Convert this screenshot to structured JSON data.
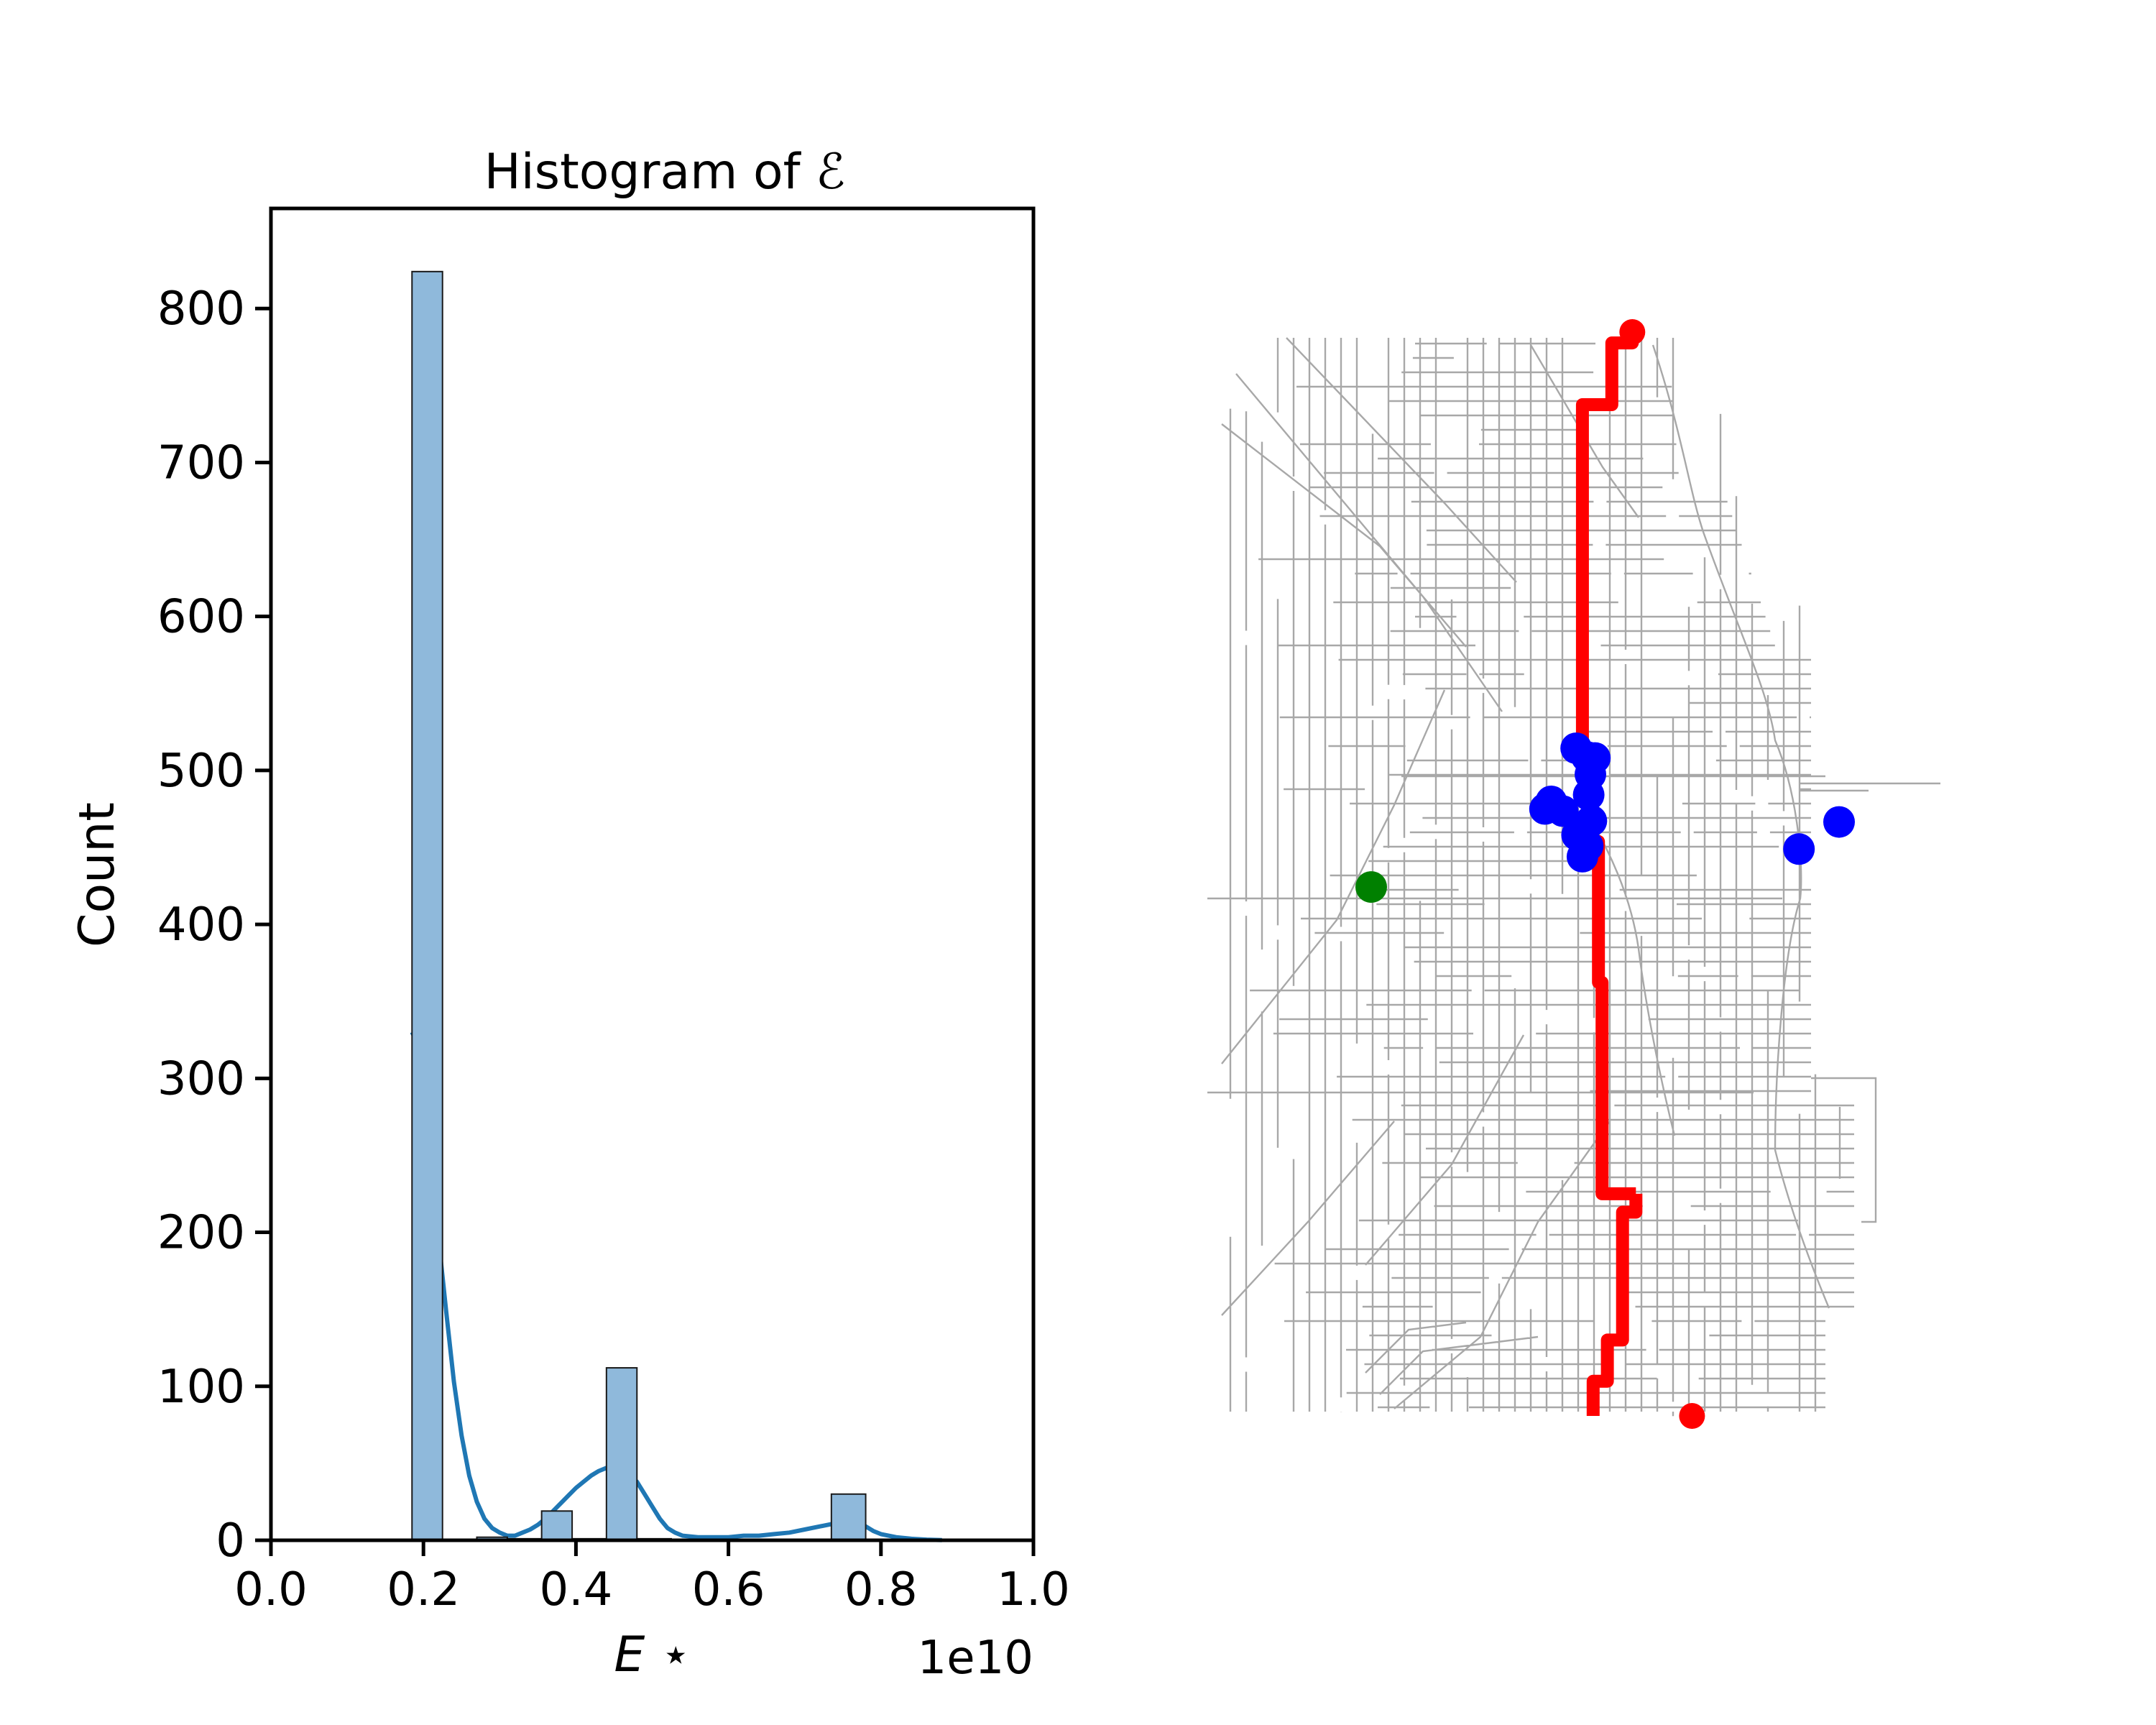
{
  "chart_data": [
    {
      "type": "bar",
      "title": "Histogram of ℰ",
      "xlabel": "E ⋆",
      "ylabel": "Count",
      "x_offset_label": "1e10",
      "xlim": [
        0.0,
        1.0
      ],
      "ylim": [
        0,
        865
      ],
      "grid": false,
      "x_ticks": [
        "0.0",
        "0.2",
        "0.4",
        "0.6",
        "0.8",
        "1.0"
      ],
      "y_ticks": [
        "0",
        "100",
        "200",
        "300",
        "400",
        "500",
        "600",
        "700",
        "800"
      ],
      "bins": [
        {
          "x0": 0.185,
          "x1": 0.225,
          "count": 824
        },
        {
          "x0": 0.225,
          "x1": 0.27,
          "count": 0
        },
        {
          "x0": 0.27,
          "x1": 0.31,
          "count": 2
        },
        {
          "x0": 0.31,
          "x1": 0.355,
          "count": 1
        },
        {
          "x0": 0.355,
          "x1": 0.395,
          "count": 19
        },
        {
          "x0": 0.395,
          "x1": 0.44,
          "count": 1
        },
        {
          "x0": 0.44,
          "x1": 0.48,
          "count": 112
        },
        {
          "x0": 0.48,
          "x1": 0.525,
          "count": 1
        },
        {
          "x0": 0.525,
          "x1": 0.565,
          "count": 0
        },
        {
          "x0": 0.565,
          "x1": 0.61,
          "count": 0
        },
        {
          "x0": 0.61,
          "x1": 0.65,
          "count": 0
        },
        {
          "x0": 0.65,
          "x1": 0.695,
          "count": 0
        },
        {
          "x0": 0.695,
          "x1": 0.735,
          "count": 0
        },
        {
          "x0": 0.735,
          "x1": 0.78,
          "count": 30
        }
      ],
      "kde": {
        "x": [
          0.185,
          0.19,
          0.2,
          0.21,
          0.22,
          0.23,
          0.24,
          0.25,
          0.26,
          0.27,
          0.28,
          0.29,
          0.3,
          0.31,
          0.32,
          0.33,
          0.34,
          0.35,
          0.36,
          0.37,
          0.38,
          0.39,
          0.4,
          0.41,
          0.42,
          0.43,
          0.44,
          0.45,
          0.46,
          0.47,
          0.48,
          0.49,
          0.5,
          0.51,
          0.52,
          0.53,
          0.54,
          0.56,
          0.58,
          0.6,
          0.62,
          0.64,
          0.66,
          0.68,
          0.7,
          0.72,
          0.74,
          0.75,
          0.76,
          0.77,
          0.78,
          0.79,
          0.8,
          0.82,
          0.84,
          0.86,
          0.88
        ],
        "y": [
          330,
          325,
          292,
          248,
          195,
          148,
          103,
          68,
          42,
          25,
          14,
          8,
          5,
          3,
          3,
          5,
          7,
          10,
          14,
          19,
          24,
          29,
          34,
          38,
          42,
          45,
          47,
          47,
          46,
          43,
          38,
          30,
          22,
          14,
          8,
          5,
          3,
          2,
          2,
          2,
          3,
          3,
          4,
          5,
          7,
          9,
          11,
          12,
          12,
          11,
          9,
          6,
          4,
          2,
          1,
          0.4,
          0.1
        ],
        "color": "#1f77b4"
      },
      "bar_fill": "#8fb9db",
      "bar_edge": "#1a1a1a"
    },
    {
      "type": "scatter",
      "description_layer": "street network map",
      "series": [
        {
          "color": "#ff0000",
          "role": "route",
          "points": [
            [
              0.497,
              0.795
            ],
            [
              0.497,
              0.812
            ],
            [
              0.482,
              0.812
            ],
            [
              0.482,
              0.93
            ],
            [
              0.465,
              0.93
            ],
            [
              0.465,
              0.968
            ],
            [
              0.449,
              0.968
            ],
            [
              0.449,
              1.0
            ]
          ]
        },
        {
          "color": "#ff0000",
          "role": "route",
          "points": [
            [
              0.493,
              0.0
            ],
            [
              0.493,
              0.01
            ],
            [
              0.47,
              0.01
            ],
            [
              0.47,
              0.067
            ],
            [
              0.437,
              0.067
            ],
            [
              0.437,
              0.412
            ],
            [
              0.448,
              0.412
            ],
            [
              0.448,
              0.47
            ],
            [
              0.455,
              0.47
            ],
            [
              0.455,
              0.6
            ],
            [
              0.459,
              0.6
            ],
            [
              0.459,
              0.795
            ],
            [
              0.497,
              0.795
            ]
          ]
        },
        {
          "color": "#ff0000",
          "role": "endpoint",
          "points": [
            [
              0.493,
              0.0
            ],
            [
              0.56,
              1.0
            ]
          ]
        },
        {
          "color": "#0000ff",
          "role": "cluster",
          "points": [
            [
              0.43,
              0.384
            ],
            [
              0.442,
              0.392
            ],
            [
              0.446,
              0.408
            ],
            [
              0.451,
              0.393
            ],
            [
              0.444,
              0.427
            ],
            [
              0.402,
              0.433
            ],
            [
              0.415,
              0.442
            ],
            [
              0.395,
              0.44
            ],
            [
              0.431,
              0.464
            ],
            [
              0.436,
              0.458
            ],
            [
              0.443,
              0.474
            ],
            [
              0.437,
              0.484
            ],
            [
              0.447,
              0.451
            ],
            [
              0.68,
              0.477
            ],
            [
              0.725,
              0.452
            ]
          ]
        },
        {
          "color": "#008000",
          "role": "marker",
          "points": [
            [
              0.2,
              0.512
            ]
          ]
        }
      ]
    }
  ]
}
